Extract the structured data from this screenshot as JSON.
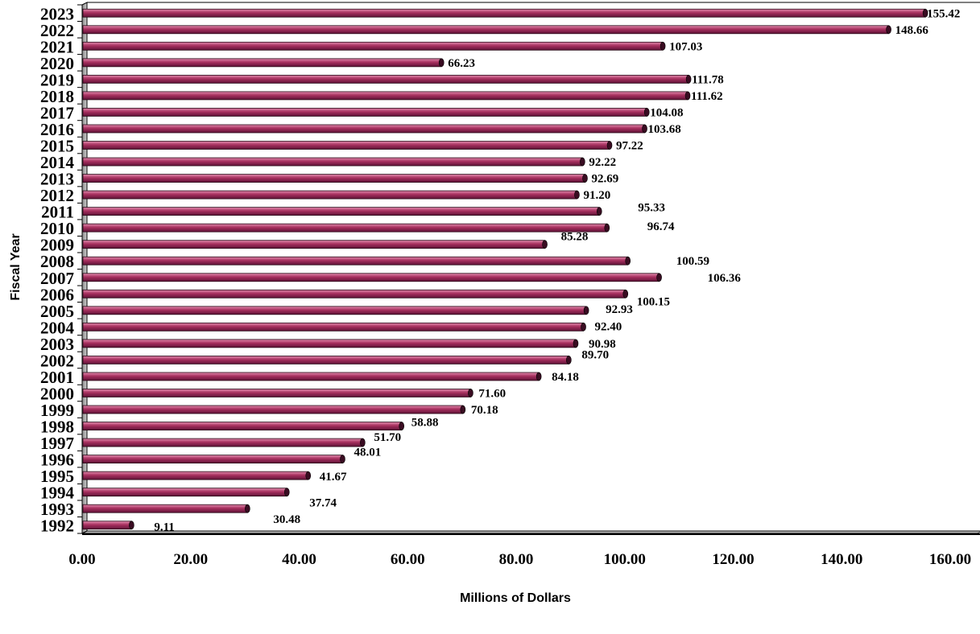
{
  "chart_data": {
    "type": "bar",
    "orientation": "horizontal",
    "title": "",
    "xlabel": "Millions of Dollars",
    "ylabel": "Fiscal Year",
    "xlim": [
      0,
      160
    ],
    "x_ticks": [
      "0.00",
      "20.00",
      "40.00",
      "60.00",
      "80.00",
      "100.00",
      "120.00",
      "140.00",
      "160.00"
    ],
    "grid": false,
    "legend": "none",
    "bar_color": "#a8305f",
    "categories": [
      "1992",
      "1993",
      "1994",
      "1995",
      "1996",
      "1997",
      "1998",
      "1999",
      "2000",
      "2001",
      "2002",
      "2003",
      "2004",
      "2005",
      "2006",
      "2007",
      "2008",
      "2009",
      "2010",
      "2011",
      "2012",
      "2013",
      "2014",
      "2015",
      "2016",
      "2017",
      "2018",
      "2019",
      "2020",
      "2021",
      "2022",
      "2023"
    ],
    "values": [
      9.11,
      30.48,
      37.74,
      41.67,
      48.01,
      51.7,
      58.88,
      70.18,
      71.6,
      84.18,
      89.7,
      90.98,
      92.4,
      92.93,
      100.15,
      106.36,
      100.59,
      85.28,
      96.74,
      95.33,
      91.2,
      92.69,
      92.22,
      97.22,
      103.68,
      104.08,
      111.62,
      111.78,
      66.23,
      107.03,
      148.66,
      155.42
    ],
    "data_labels": [
      "9.11",
      "30.48",
      "37.74",
      "41.67",
      "48.01",
      "51.70",
      "58.88",
      "70.18",
      "71.60",
      "84.18",
      "89.70",
      "90.98",
      "92.40",
      "92.93",
      "100.15",
      "106.36",
      "100.59",
      "85.28",
      "96.74",
      "95.33",
      "91.20",
      "92.69",
      "92.22",
      "97.22",
      "103.68",
      "104.08",
      "111.62",
      "111.78",
      "66.23",
      "107.03",
      "148.66",
      "155.42"
    ]
  }
}
